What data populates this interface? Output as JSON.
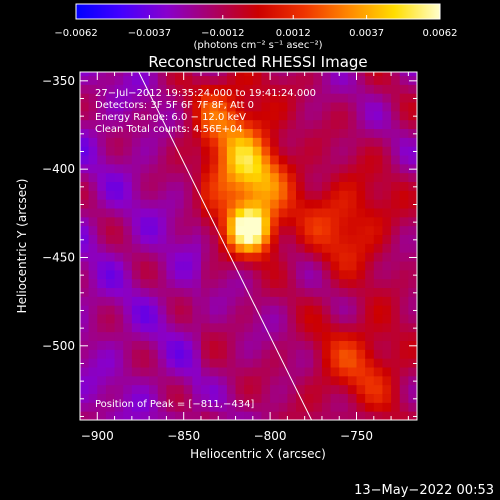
{
  "chart_data": {
    "type": "heatmap",
    "title": "Reconstructed RHESSI Image",
    "xlabel": "Heliocentric X (arcsec)",
    "ylabel": "Heliocentric Y (arcsec)",
    "xlim": [
      -910,
      -715
    ],
    "ylim": [
      -542,
      -345
    ],
    "xticks": [
      -900,
      -850,
      -800,
      -750
    ],
    "xtick_labels": [
      "−900",
      "−850",
      "−800",
      "−750"
    ],
    "yticks": [
      -350,
      -400,
      -450,
      -500
    ],
    "ytick_labels": [
      "−350",
      "−400",
      "−450",
      "−500"
    ],
    "colorbar": {
      "min": -0.0062,
      "max": 0.0062,
      "ticks": [
        -0.0062,
        -0.0037,
        -0.0012,
        0.0012,
        0.0037,
        0.0062
      ],
      "tick_labels": [
        "−0.0062",
        "−0.0037",
        "−0.0012",
        "0.0012",
        "0.0037",
        "0.0062"
      ],
      "units": "(photons cm⁻² s⁻¹ asec⁻²)",
      "colors": [
        "#0000ff",
        "#4400ff",
        "#8800cc",
        "#aa0066",
        "#cc0000",
        "#ee3300",
        "#ff8800",
        "#ffdd00",
        "#ffffcc"
      ]
    },
    "annotations": [
      "27−Jul−2012 19:35:24.000 to 19:41:24.000",
      "Detectors: 3F 5F 6F 7F 8F, Att 0",
      "Energy Range: 6.0 − 12.0 keV",
      "Clean    Total counts: 4.56E+04"
    ],
    "peak_label": "Position of Peak = [−811,−434]",
    "peak": {
      "x": -811,
      "y": -434
    },
    "limb_line": [
      [
        -876,
        -345
      ],
      [
        -776,
        -542
      ]
    ],
    "sources": [
      {
        "x": -811,
        "y": -434,
        "value": 0.0062
      },
      {
        "x": -813,
        "y": -405,
        "value": 0.0037
      },
      {
        "x": -825,
        "y": -372,
        "value": 0.0015
      },
      {
        "x": -757,
        "y": -430,
        "value": 0.0012
      },
      {
        "x": -748,
        "y": -510,
        "value": 0.001
      }
    ]
  },
  "timestamp": "13−May−2022 00:53"
}
